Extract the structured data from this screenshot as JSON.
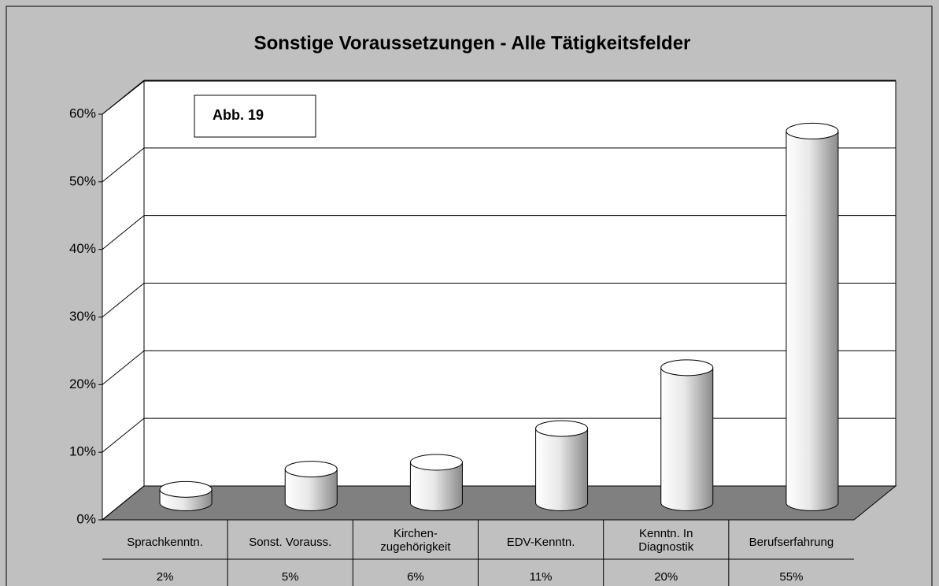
{
  "chart_data": {
    "type": "cylinder-bar",
    "title": "Sonstige Voraussetzungen - Alle Tätigkeitsfelder",
    "annotation": "Abb. 19",
    "categories": [
      "Sprachkenntn.",
      "Sonst. Vorauss.",
      "Kirchen-\nzugehörigkeit",
      "EDV-Kenntn.",
      "Kenntn. In\nDiagnostik",
      "Berufserfahrung"
    ],
    "values": [
      2,
      5,
      6,
      11,
      20,
      55
    ],
    "value_labels": [
      "2%",
      "5%",
      "6%",
      "11%",
      "20%",
      "55%"
    ],
    "ylim": [
      0,
      60
    ],
    "yticks": [
      {
        "value": 0,
        "label": "0%"
      },
      {
        "value": 10,
        "label": "10%"
      },
      {
        "value": 20,
        "label": "20%"
      },
      {
        "value": 30,
        "label": "30%"
      },
      {
        "value": 40,
        "label": "40%"
      },
      {
        "value": 50,
        "label": "50%"
      },
      {
        "value": 60,
        "label": "60%"
      }
    ],
    "grid": true,
    "color": "#ffffff"
  }
}
